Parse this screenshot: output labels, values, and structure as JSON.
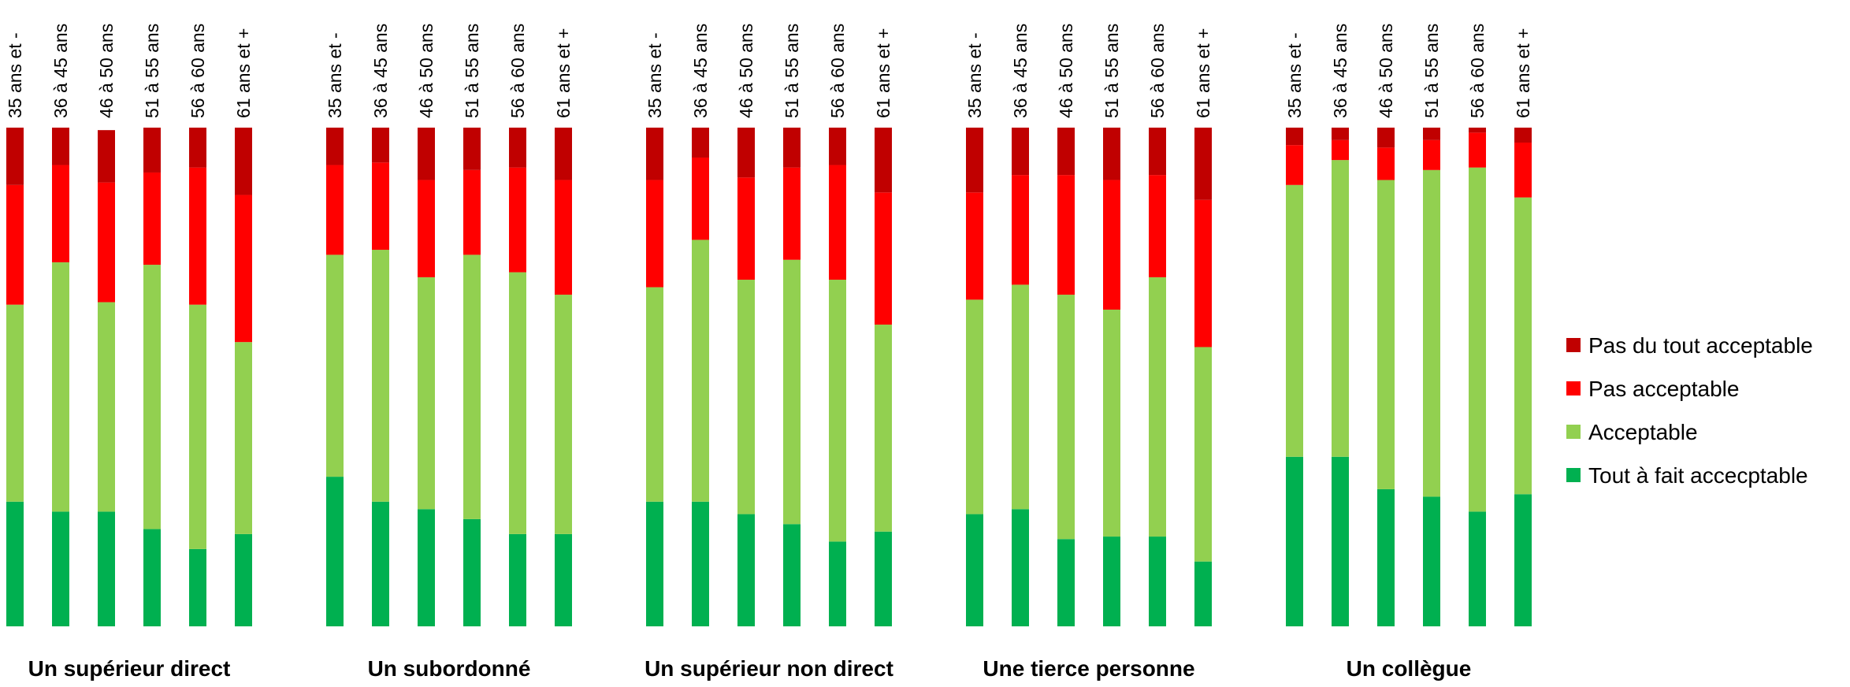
{
  "chart_data": {
    "type": "bar",
    "stacked": true,
    "normalized": true,
    "ylim": [
      0,
      100
    ],
    "grid": false,
    "legend_position": "right",
    "categories": [
      "35 ans et -",
      "36 à 45 ans",
      "46 à 50 ans",
      "51 à 55 ans",
      "56 à 60 ans",
      "61 ans et +"
    ],
    "groups": [
      "Un supérieur direct",
      "Un subordonné",
      "Un supérieur non direct",
      "Une tierce personne",
      "Un collègue"
    ],
    "series": [
      {
        "name": "Tout à fait accecptable",
        "color": "#00b050",
        "values": [
          [
            25,
            23,
            23,
            19.5,
            15.5,
            18.5
          ],
          [
            30,
            25,
            23.5,
            21.5,
            18.5,
            18.5
          ],
          [
            25,
            25,
            22.5,
            20.5,
            17,
            19
          ],
          [
            22.5,
            23.5,
            17.5,
            18,
            18,
            13
          ],
          [
            34,
            34,
            27.5,
            26,
            23,
            26.5
          ]
        ]
      },
      {
        "name": "Acceptable",
        "color": "#92d050",
        "values": [
          [
            39.5,
            50,
            42,
            53,
            49,
            38.5
          ],
          [
            44.5,
            50.5,
            46.5,
            53,
            52.5,
            48
          ],
          [
            43,
            52.5,
            47,
            53,
            52.5,
            41.5
          ],
          [
            43,
            45,
            49,
            45.5,
            52,
            43
          ],
          [
            54.5,
            59.5,
            62,
            65.5,
            69,
            59.5
          ]
        ]
      },
      {
        "name": "Pas acceptable",
        "color": "#ff0000",
        "values": [
          [
            24,
            19.5,
            24,
            18.5,
            27.5,
            29.5
          ],
          [
            18,
            17.5,
            19.5,
            17,
            21,
            23
          ],
          [
            21.5,
            16.5,
            20.5,
            18.5,
            23,
            26.5
          ],
          [
            21.5,
            22,
            24,
            26,
            20.5,
            29.5
          ],
          [
            8,
            4,
            6.5,
            6,
            7,
            11
          ]
        ]
      },
      {
        "name": "Pas du tout acceptable",
        "color": "#c00000",
        "values": [
          [
            11.5,
            7.5,
            10.5,
            9,
            8,
            13.5
          ],
          [
            7.5,
            7,
            10.5,
            8.5,
            8,
            10.5
          ],
          [
            10.5,
            6,
            10,
            8,
            7.5,
            13
          ],
          [
            13,
            9.5,
            9.5,
            10.5,
            9.5,
            14.5
          ],
          [
            3.5,
            2.5,
            4,
            2.5,
            1,
            3
          ]
        ]
      }
    ]
  }
}
